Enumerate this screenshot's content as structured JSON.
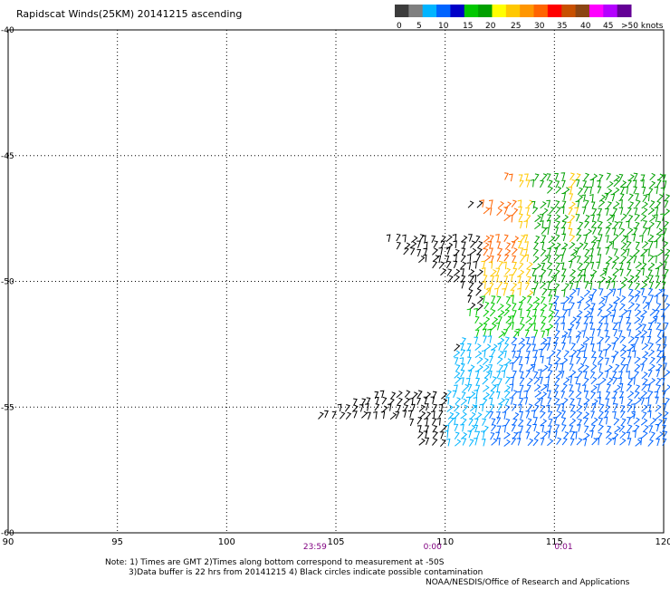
{
  "title": "Rapidscat Winds(25KM) 20141215 ascending",
  "legend": {
    "colors": [
      "#3c3c3c",
      "#7f7f7f",
      "#00b4ff",
      "#0064ff",
      "#0000c8",
      "#00c800",
      "#00a000",
      "#ffff00",
      "#ffc800",
      "#ff9600",
      "#ff6400",
      "#ff0000",
      "#c85000",
      "#8b4513",
      "#ff00ff",
      "#b400ff",
      "#640096"
    ],
    "labels": [
      "0",
      "5",
      "10",
      "15",
      "20",
      "25",
      "30",
      "35",
      "40",
      "45",
      ">50 knots"
    ]
  },
  "chart_data": {
    "type": "scatter",
    "xlim": [
      90,
      120
    ],
    "ylim": [
      -60,
      -40
    ],
    "xticks": [
      "90",
      "95",
      "100",
      "105",
      "110",
      "115",
      "120"
    ],
    "yticks": [
      "-40",
      "-45",
      "-50",
      "-55",
      "-60"
    ],
    "grid": true,
    "time_labels": [
      {
        "lon": 104,
        "text": "23:59"
      },
      {
        "lon": 109.5,
        "text": "0:00"
      },
      {
        "lon": 115.5,
        "text": "0:01"
      }
    ]
  },
  "notes": {
    "line1": "Note: 1) Times are GMT 2)Times along bottom correspond to measurement at -50S",
    "line2": "3)Data buffer is 22 hrs from 20141215 4) Black circles indicate possible contamination",
    "credit": "NOAA/NESDIS/Office of Research and Applications"
  }
}
